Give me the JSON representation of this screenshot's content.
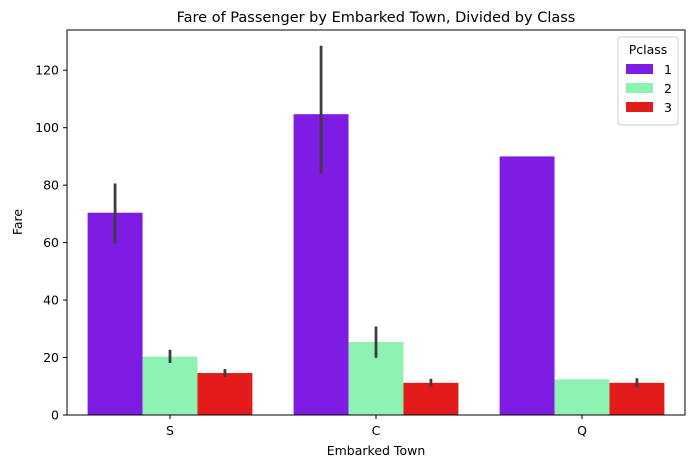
{
  "chart_data": {
    "type": "bar",
    "title": "Fare of Passenger by Embarked Town, Divided by Class",
    "xlabel": "Embarked Town",
    "ylabel": "Fare",
    "categories": [
      "S",
      "C",
      "Q"
    ],
    "ylim": [
      0,
      134
    ],
    "yticks": [
      0,
      20,
      40,
      60,
      80,
      100,
      120
    ],
    "grid": false,
    "legend": {
      "title": "Pclass",
      "placement": "top-right"
    },
    "series": [
      {
        "name": "1",
        "color": "#7f1ce3",
        "values": [
          70.4,
          104.7,
          90.0
        ],
        "ci_low": [
          59.7,
          84.0,
          null
        ],
        "ci_high": [
          80.6,
          128.5,
          null
        ]
      },
      {
        "name": "2",
        "color": "#8ef2b2",
        "values": [
          20.3,
          25.4,
          12.4
        ],
        "ci_low": [
          18.1,
          19.9,
          null
        ],
        "ci_high": [
          22.7,
          30.8,
          null
        ]
      },
      {
        "name": "3",
        "color": "#e31b1b",
        "values": [
          14.6,
          11.2,
          11.2
        ],
        "ci_low": [
          13.3,
          9.9,
          9.6
        ],
        "ci_high": [
          16.0,
          12.6,
          12.8
        ]
      }
    ]
  }
}
